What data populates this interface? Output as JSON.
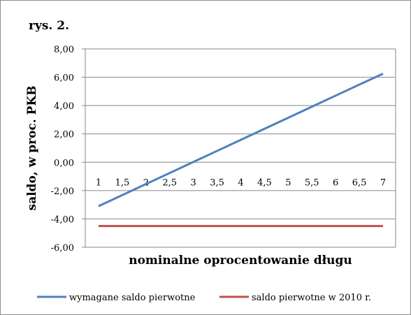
{
  "chart_data": {
    "type": "line",
    "title": "rys. 2.",
    "xlabel": "nominalne oprocentowanie długu",
    "ylabel": "saldo, w proc. PKB",
    "categories": [
      "1",
      "1,5",
      "2",
      "2,5",
      "3",
      "3,5",
      "4",
      "4,5",
      "5",
      "5,5",
      "6",
      "6,5",
      "7"
    ],
    "y_ticks": [
      "8,00",
      "6,00",
      "4,00",
      "2,00",
      "0,00",
      "-2,00",
      "-4,00",
      "-6,00"
    ],
    "ylim": [
      -6,
      8
    ],
    "grid": true,
    "legend_position": "bottom",
    "series": [
      {
        "name": "wymagane saldo pierwotne",
        "color": "#4f81bd",
        "values": [
          -3.1,
          -2.32,
          -1.54,
          -0.76,
          0.02,
          0.8,
          1.58,
          2.36,
          3.14,
          3.92,
          4.7,
          5.48,
          6.25
        ]
      },
      {
        "name": "saldo pierwotne w 2010 r.",
        "color": "#c0504d",
        "values": [
          -4.5,
          -4.5,
          -4.5,
          -4.5,
          -4.5,
          -4.5,
          -4.5,
          -4.5,
          -4.5,
          -4.5,
          -4.5,
          -4.5,
          -4.5
        ]
      }
    ]
  }
}
